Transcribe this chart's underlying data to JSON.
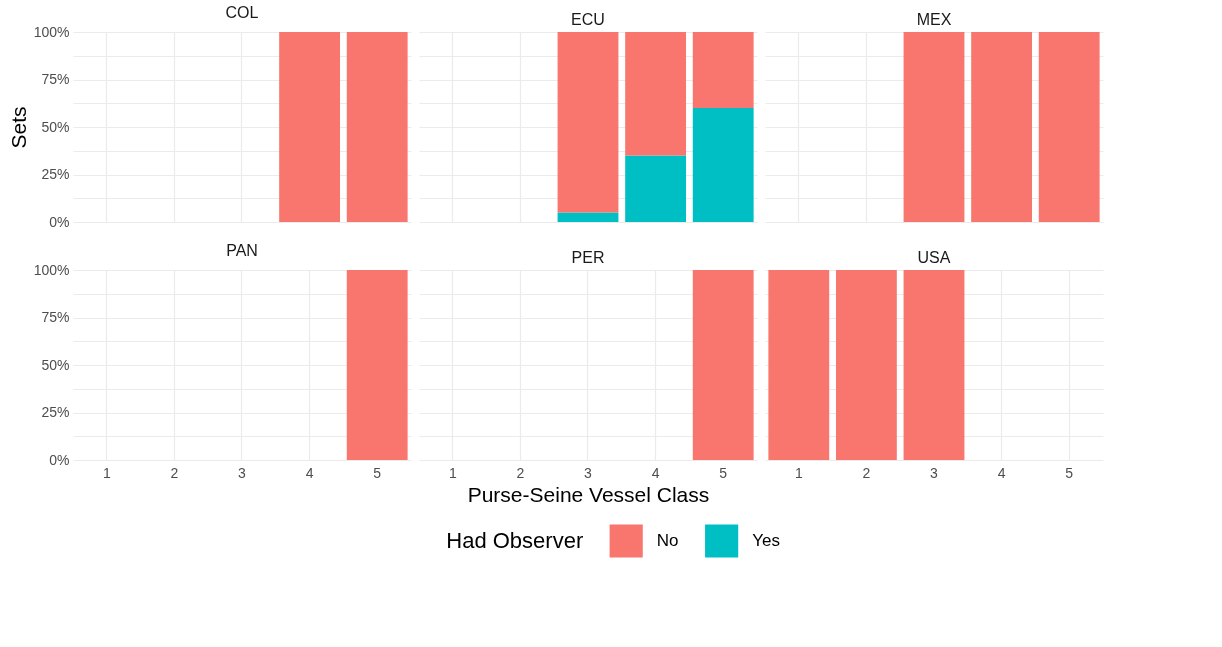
{
  "chart_data": [
    {
      "type": "bar",
      "title": "COL",
      "ylabel": "Sets",
      "categories": [
        "1",
        "2",
        "3",
        "4",
        "5"
      ],
      "stacked": true,
      "grid": true,
      "legend": false,
      "tick_labels": "y",
      "ylim": [
        0,
        100
      ],
      "yticks": [
        {
          "value": 0,
          "label": "0%"
        },
        {
          "value": 12.5,
          "label": null
        },
        {
          "value": 25,
          "label": "25%"
        },
        {
          "value": 37.5,
          "label": null
        },
        {
          "value": 50,
          "label": "50%"
        },
        {
          "value": 62.5,
          "label": null
        },
        {
          "value": 75,
          "label": "75%"
        },
        {
          "value": 87.5,
          "label": null
        },
        {
          "value": 100,
          "label": "100%"
        }
      ],
      "series": [
        {
          "color": "#00bfc4",
          "values": [
            null,
            null,
            null,
            null,
            null
          ]
        },
        {
          "color": "#f8766d",
          "values": [
            null,
            null,
            null,
            100,
            100
          ]
        }
      ]
    },
    {
      "type": "bar",
      "title": "ECU",
      "categories": [
        "1",
        "2",
        "3",
        "4",
        "5"
      ],
      "stacked": true,
      "grid": true,
      "legend": false,
      "tick_labels": false,
      "ylim": [
        0,
        100
      ],
      "yticks": [
        {
          "value": 0,
          "label": null
        },
        {
          "value": 12.5,
          "label": null
        },
        {
          "value": 25,
          "label": null
        },
        {
          "value": 37.5,
          "label": null
        },
        {
          "value": 50,
          "label": null
        },
        {
          "value": 62.5,
          "label": null
        },
        {
          "value": 75,
          "label": null
        },
        {
          "value": 87.5,
          "label": null
        },
        {
          "value": 100,
          "label": null
        }
      ],
      "series": [
        {
          "color": "#00bfc4",
          "values": [
            null,
            null,
            5,
            35,
            60
          ]
        },
        {
          "color": "#f8766d",
          "values": [
            null,
            null,
            95,
            65,
            40
          ]
        }
      ]
    },
    {
      "type": "bar",
      "title": "MEX",
      "categories": [
        "1",
        "2",
        "3",
        "4",
        "5"
      ],
      "stacked": true,
      "grid": true,
      "legend": false,
      "tick_labels": false,
      "ylim": [
        0,
        100
      ],
      "yticks": [
        {
          "value": 0,
          "label": null
        },
        {
          "value": 12.5,
          "label": null
        },
        {
          "value": 25,
          "label": null
        },
        {
          "value": 37.5,
          "label": null
        },
        {
          "value": 50,
          "label": null
        },
        {
          "value": 62.5,
          "label": null
        },
        {
          "value": 75,
          "label": null
        },
        {
          "value": 87.5,
          "label": null
        },
        {
          "value": 100,
          "label": null
        }
      ],
      "series": [
        {
          "color": "#00bfc4",
          "values": [
            null,
            null,
            null,
            null,
            null
          ]
        },
        {
          "color": "#f8766d",
          "values": [
            null,
            null,
            100,
            100,
            100
          ]
        }
      ]
    },
    {
      "type": "bar",
      "title": "PAN",
      "categories": [
        "1",
        "2",
        "3",
        "4",
        "5"
      ],
      "stacked": true,
      "grid": true,
      "legend": false,
      "ylim": [
        0,
        100
      ],
      "yticks": [
        {
          "value": 0,
          "label": "0%"
        },
        {
          "value": 12.5,
          "label": null
        },
        {
          "value": 25,
          "label": "25%"
        },
        {
          "value": 37.5,
          "label": null
        },
        {
          "value": 50,
          "label": "50%"
        },
        {
          "value": 62.5,
          "label": null
        },
        {
          "value": 75,
          "label": "75%"
        },
        {
          "value": 87.5,
          "label": null
        },
        {
          "value": 100,
          "label": "100%"
        }
      ],
      "series": [
        {
          "color": "#00bfc4",
          "values": [
            null,
            null,
            null,
            null,
            null
          ]
        },
        {
          "color": "#f8766d",
          "values": [
            null,
            null,
            null,
            null,
            100
          ]
        }
      ]
    },
    {
      "type": "bar",
      "title": "PER",
      "xlabel": "Purse-Seine Vessel Class",
      "legend_title": "Had Observer",
      "categories": [
        "1",
        "2",
        "3",
        "4",
        "5"
      ],
      "stacked": true,
      "grid": true,
      "legend": "bottom",
      "tick_labels": "x",
      "ylim": [
        0,
        100
      ],
      "yticks": [
        {
          "value": 0,
          "label": null
        },
        {
          "value": 12.5,
          "label": null
        },
        {
          "value": 25,
          "label": null
        },
        {
          "value": 37.5,
          "label": null
        },
        {
          "value": 50,
          "label": null
        },
        {
          "value": 62.5,
          "label": null
        },
        {
          "value": 75,
          "label": null
        },
        {
          "value": 87.5,
          "label": null
        },
        {
          "value": 100,
          "label": null
        }
      ],
      "series": [
        {
          "name": "Yes",
          "color": "#00bfc4",
          "values": [
            null,
            null,
            null,
            null,
            null
          ]
        },
        {
          "name": "No",
          "color": "#f8766d",
          "values": [
            null,
            null,
            null,
            null,
            100
          ]
        }
      ]
    },
    {
      "type": "bar",
      "title": "USA",
      "categories": [
        "1",
        "2",
        "3",
        "4",
        "5"
      ],
      "stacked": true,
      "grid": true,
      "legend": false,
      "tick_labels": "x",
      "ylim": [
        0,
        100
      ],
      "yticks": [
        {
          "value": 0,
          "label": null
        },
        {
          "value": 12.5,
          "label": null
        },
        {
          "value": 25,
          "label": null
        },
        {
          "value": 37.5,
          "label": null
        },
        {
          "value": 50,
          "label": null
        },
        {
          "value": 62.5,
          "label": null
        },
        {
          "value": 75,
          "label": null
        },
        {
          "value": 87.5,
          "label": null
        },
        {
          "value": 100,
          "label": null
        }
      ],
      "series": [
        {
          "color": "#00bfc4",
          "values": [
            null,
            null,
            null,
            null,
            null
          ]
        },
        {
          "color": "#f8766d",
          "values": [
            100,
            100,
            100,
            null,
            null
          ]
        }
      ]
    }
  ]
}
